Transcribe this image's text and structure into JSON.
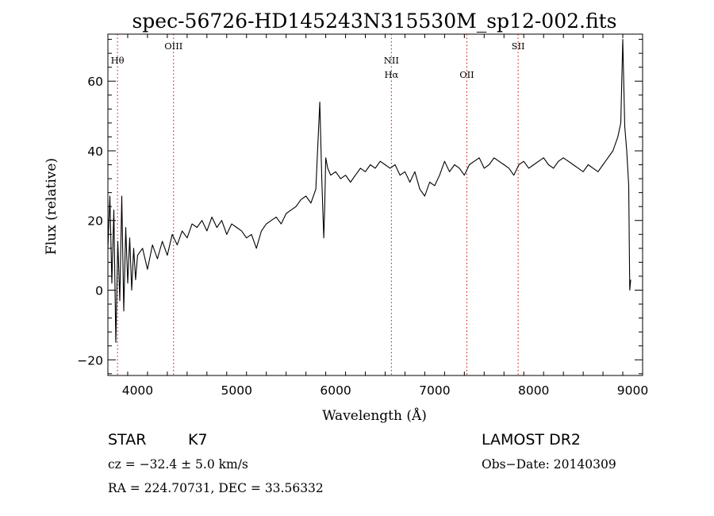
{
  "chart_data": {
    "type": "line",
    "title": "spec-56726-HD145243N315530M_sp12-002.fits",
    "xlabel": "Wavelength (Å)",
    "ylabel": "Flux (relative)",
    "xlim": [
      3700,
      9100
    ],
    "ylim": [
      -24.5,
      73.5
    ],
    "x_ticks": [
      4000,
      5000,
      6000,
      7000,
      8000,
      9000
    ],
    "y_ticks": [
      -20,
      0,
      20,
      40,
      60
    ],
    "grid": false,
    "series": [
      {
        "x": [
          3700,
          3720,
          3740,
          3760,
          3780,
          3800,
          3820,
          3840,
          3860,
          3880,
          3900,
          3920,
          3940,
          3960,
          3980,
          4000,
          4050,
          4100,
          4150,
          4200,
          4250,
          4300,
          4350,
          4400,
          4450,
          4500,
          4550,
          4600,
          4650,
          4700,
          4750,
          4800,
          4850,
          4900,
          4950,
          5000,
          5050,
          5100,
          5150,
          5200,
          5250,
          5300,
          5350,
          5400,
          5450,
          5500,
          5550,
          5600,
          5650,
          5700,
          5750,
          5800,
          5840,
          5860,
          5880,
          5890,
          5900,
          5920,
          5950,
          6000,
          6050,
          6100,
          6150,
          6200,
          6250,
          6300,
          6350,
          6400,
          6450,
          6500,
          6550,
          6600,
          6650,
          6700,
          6750,
          6800,
          6850,
          6900,
          6950,
          7000,
          7050,
          7100,
          7150,
          7200,
          7250,
          7300,
          7350,
          7400,
          7450,
          7500,
          7550,
          7600,
          7650,
          7700,
          7750,
          7800,
          7850,
          7900,
          7950,
          8000,
          8050,
          8100,
          8150,
          8200,
          8250,
          8300,
          8350,
          8400,
          8450,
          8500,
          8550,
          8600,
          8650,
          8700,
          8750,
          8800,
          8850,
          8880,
          8900,
          8920,
          8940,
          8960,
          8970,
          8980
        ],
        "y": [
          12,
          27,
          2,
          23,
          -15,
          14,
          -3,
          27,
          -6,
          18,
          2,
          15,
          0,
          12,
          3,
          10,
          12,
          6,
          13,
          9,
          14,
          10,
          16,
          13,
          17,
          15,
          19,
          18,
          20,
          17,
          21,
          18,
          20,
          16,
          19,
          18,
          17,
          15,
          16,
          12,
          17,
          19,
          20,
          21,
          19,
          22,
          23,
          24,
          26,
          27,
          25,
          29,
          54,
          32,
          15,
          24,
          38,
          35,
          33,
          34,
          32,
          33,
          31,
          33,
          35,
          34,
          36,
          35,
          37,
          36,
          35,
          36,
          33,
          34,
          31,
          34,
          29,
          27,
          31,
          30,
          33,
          37,
          34,
          36,
          35,
          33,
          36,
          37,
          38,
          35,
          36,
          38,
          37,
          36,
          35,
          33,
          36,
          37,
          35,
          36,
          37,
          38,
          36,
          35,
          37,
          38,
          37,
          36,
          35,
          34,
          36,
          35,
          34,
          36,
          38,
          40,
          44,
          48,
          72,
          47,
          40,
          30,
          0,
          3
        ]
      }
    ],
    "vlines": [
      {
        "x": 3797,
        "label": "Hθ",
        "label_row": 1
      },
      {
        "x": 4363,
        "label": "OIII",
        "label_row": 0
      },
      {
        "x": 6563,
        "label": "NII",
        "label_row": 1
      },
      {
        "x": 6563,
        "label": "Hα",
        "label_row": 2
      },
      {
        "x": 7325,
        "label": "OII",
        "label_row": 2
      },
      {
        "x": 7843,
        "label": "SII",
        "label_row": 0
      }
    ],
    "vline_color": "#cc0000",
    "line_color": "#000000"
  },
  "info": {
    "obj_class": "STAR",
    "subclass": "K7",
    "survey": "LAMOST DR2",
    "cz": "cz = −32.4 ± 5.0 km/s",
    "obs_date": "Obs−Date: 20140309",
    "radec": "RA = 224.70731, DEC =  33.56332"
  }
}
